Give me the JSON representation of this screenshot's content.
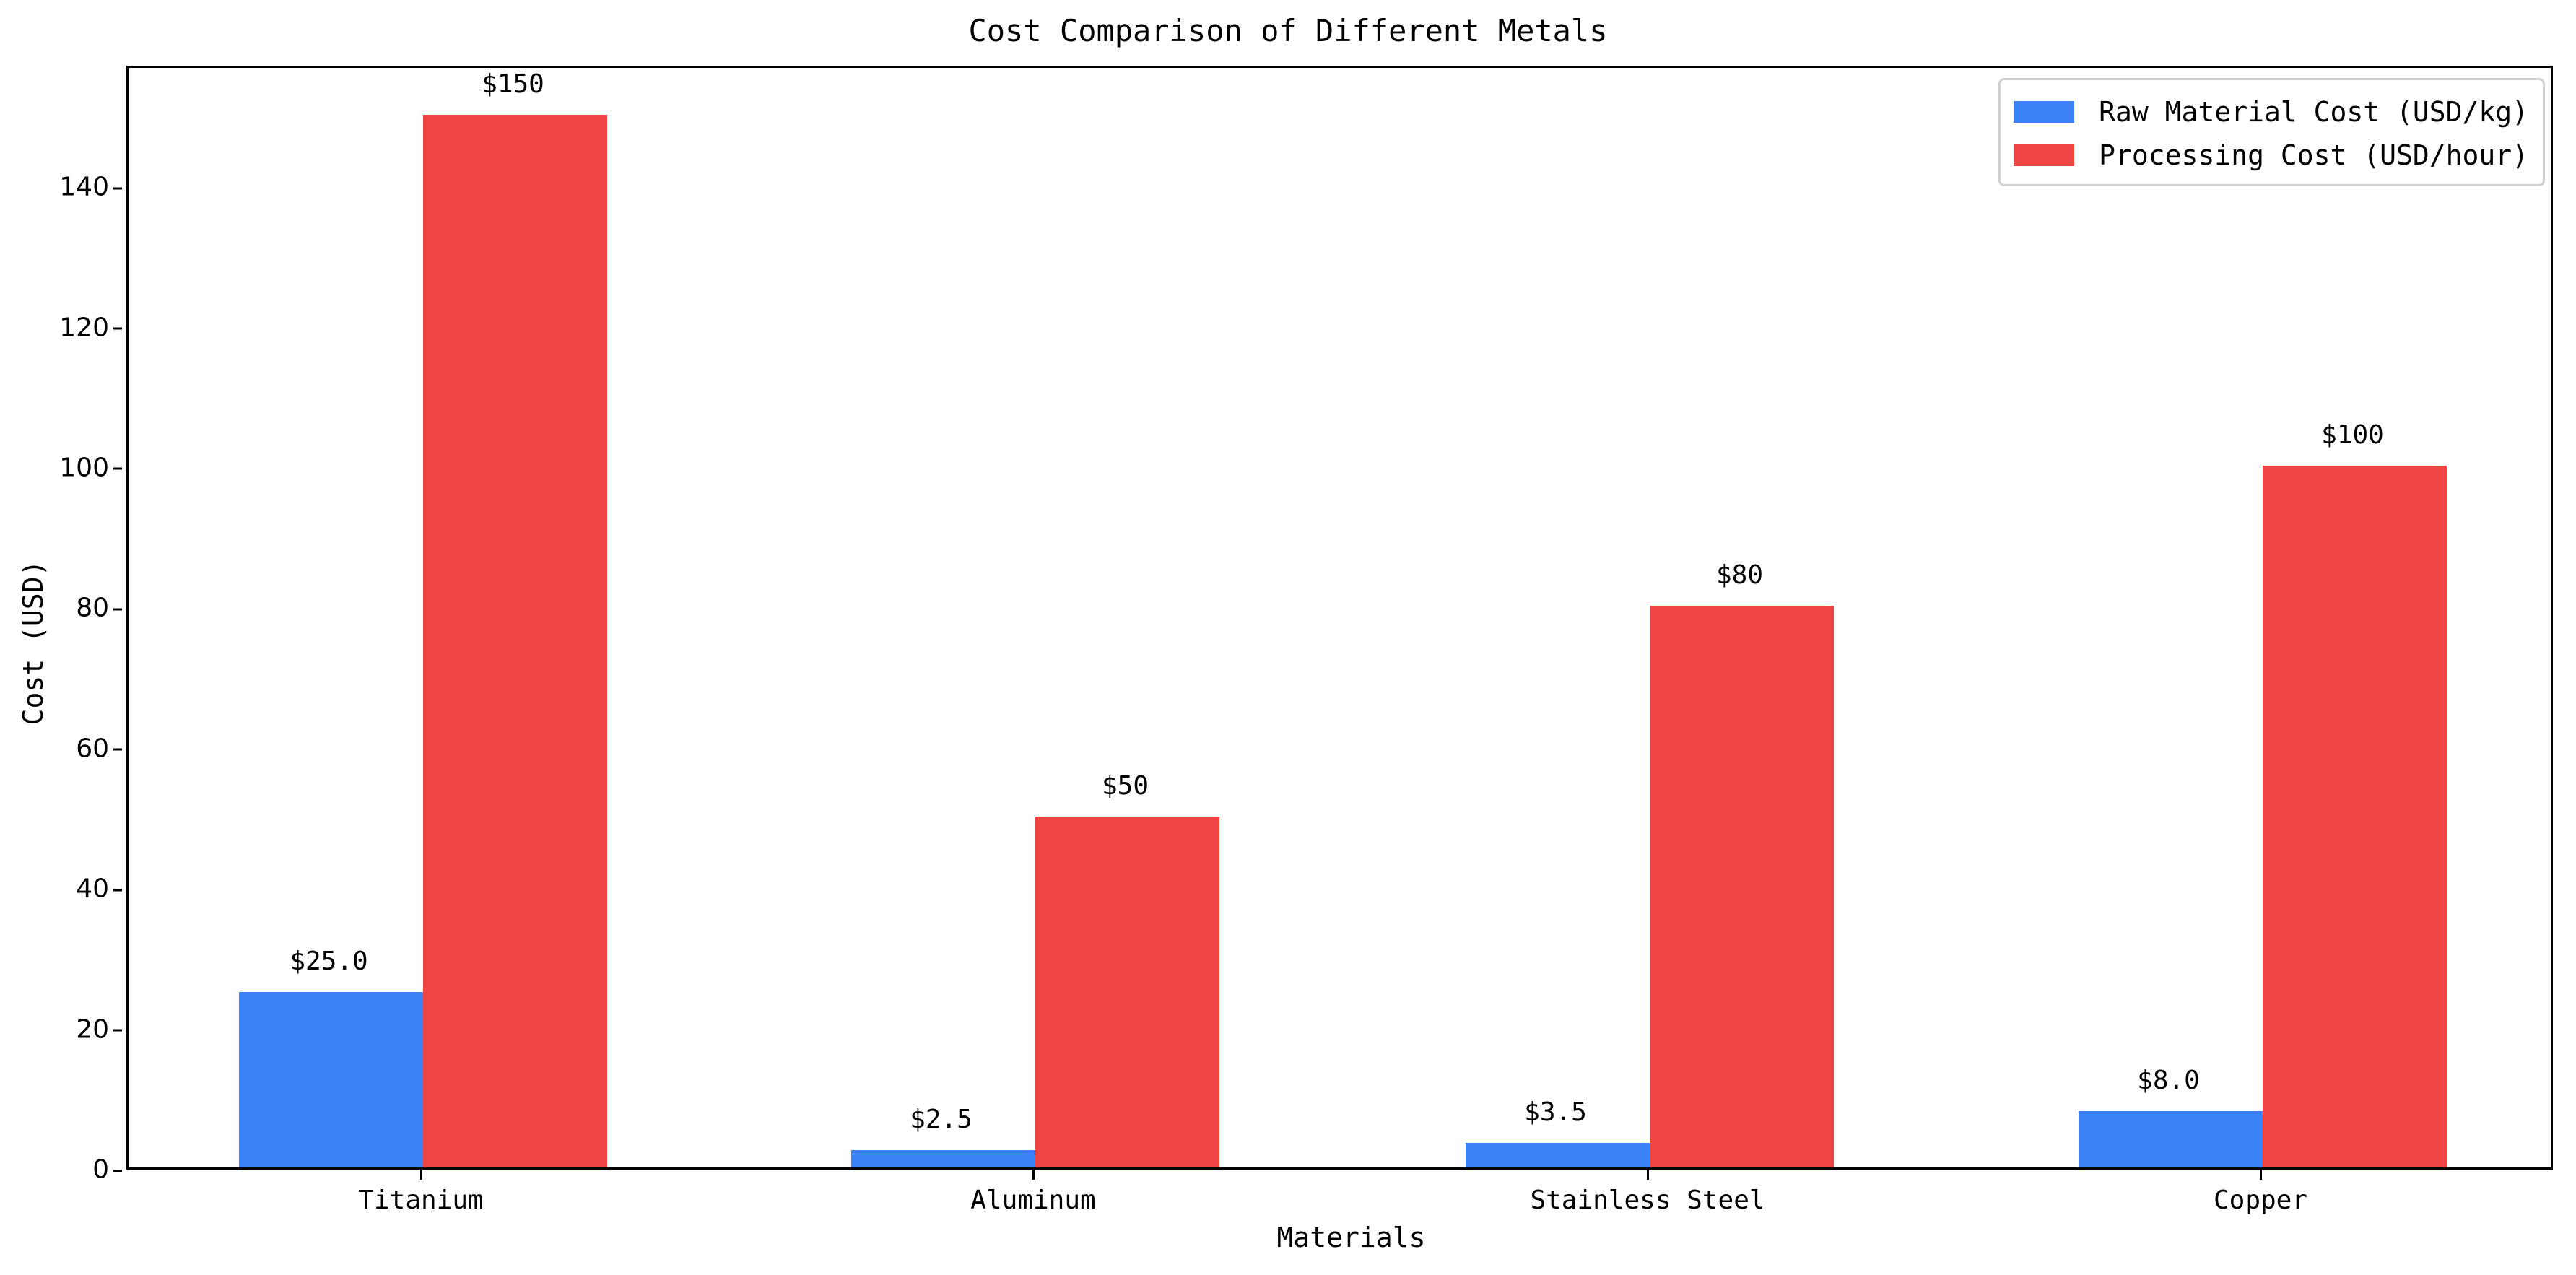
{
  "chart_data": {
    "type": "bar",
    "title": "Cost Comparison of Different Metals",
    "xlabel": "Materials",
    "ylabel": "Cost (USD)",
    "categories": [
      "Titanium",
      "Aluminum",
      "Stainless Steel",
      "Copper"
    ],
    "series": [
      {
        "name": "Raw Material Cost (USD/kg)",
        "color": "#3b82f6",
        "values": [
          25.0,
          2.5,
          3.5,
          8.0
        ],
        "labels": [
          "$25.0",
          "$2.5",
          "$3.5",
          "$8.0"
        ]
      },
      {
        "name": "Processing Cost (USD/hour)",
        "color": "#ef4444",
        "values": [
          150,
          50,
          80,
          100
        ],
        "labels": [
          "$150",
          "$50",
          "$80",
          "$100"
        ]
      }
    ],
    "yticks": [
      0,
      20,
      40,
      60,
      80,
      100,
      120,
      140
    ],
    "ylim": [
      0,
      157.3
    ],
    "grid": false,
    "legend_position": "upper right"
  }
}
